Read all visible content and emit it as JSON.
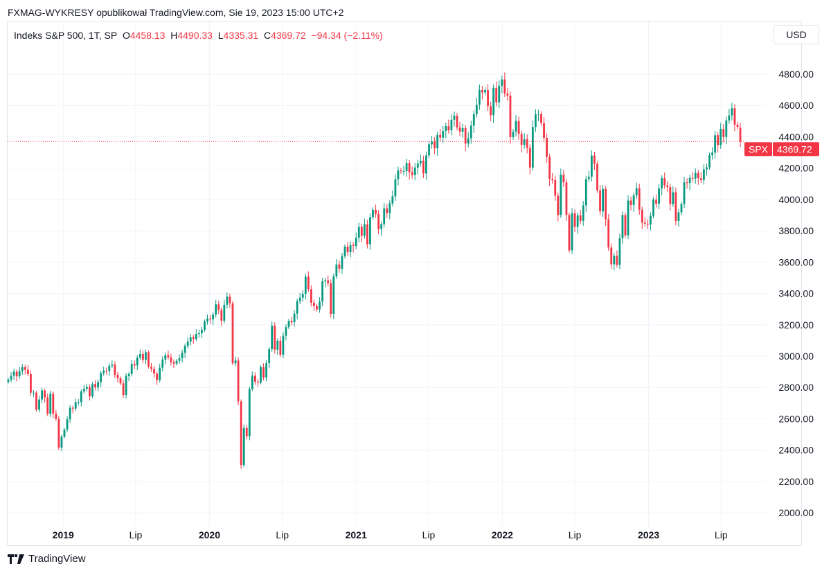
{
  "header": {
    "published": "FXMAG-WYKRESY opublikował TradingView.com, Sie 19, 2023 15:00 UTC+2"
  },
  "legend": {
    "symbol": "Indeks S&P 500, 1T, SP",
    "o_label": "O",
    "o": "4458.13",
    "h_label": "H",
    "h": "4490.33",
    "l_label": "L",
    "l": "4335.31",
    "c_label": "C",
    "c": "4369.72",
    "change": "−94.34 (−2.11%)"
  },
  "currency_button": "USD",
  "price_tag": {
    "symbol": "SPX",
    "value": "4369.72"
  },
  "brand": "TradingView",
  "colors": {
    "up": "#089981",
    "down": "#f23645",
    "grid": "#f0f3fa",
    "axis_text": "#131722"
  },
  "chart_data": {
    "type": "candlestick",
    "interval": "1 week",
    "x_start": "2018-08-17",
    "ylim": [
      1950,
      4900
    ],
    "y_scale": "linear",
    "grid": true,
    "y_ticks": [
      "2000.00",
      "2200.00",
      "2400.00",
      "2600.00",
      "2800.00",
      "3000.00",
      "3200.00",
      "3400.00",
      "3600.00",
      "3800.00",
      "4000.00",
      "4200.00",
      "4400.00",
      "4600.00",
      "4800.00"
    ],
    "x_ticks": [
      {
        "label": "2019",
        "date": "2019-01-01",
        "bold": true
      },
      {
        "label": "Lip",
        "date": "2019-07-01"
      },
      {
        "label": "2020",
        "date": "2020-01-01",
        "bold": true
      },
      {
        "label": "Lip",
        "date": "2020-07-01"
      },
      {
        "label": "2021",
        "date": "2021-01-01",
        "bold": true
      },
      {
        "label": "Lip",
        "date": "2021-07-01"
      },
      {
        "label": "2022",
        "date": "2022-01-01",
        "bold": true
      },
      {
        "label": "Lip",
        "date": "2022-07-01"
      },
      {
        "label": "2023",
        "date": "2023-01-01",
        "bold": true
      },
      {
        "label": "Lip",
        "date": "2023-07-01"
      }
    ],
    "last_price": 4369.72,
    "last_candle": {
      "open": 4458.13,
      "high": 4490.33,
      "low": 4335.31,
      "close": 4369.72
    },
    "weekly_close": [
      2850,
      2875,
      2901,
      2871,
      2904,
      2929,
      2913,
      2885,
      2767,
      2767,
      2658,
      2723,
      2781,
      2736,
      2632,
      2760,
      2633,
      2599,
      2416,
      2485,
      2531,
      2596,
      2670,
      2665,
      2706,
      2707,
      2775,
      2792,
      2803,
      2743,
      2822,
      2800,
      2834,
      2892,
      2907,
      2905,
      2939,
      2945,
      2881,
      2859,
      2826,
      2752,
      2873,
      2886,
      2950,
      2941,
      2990,
      3013,
      2976,
      3025,
      2932,
      2918,
      2888,
      2847,
      2926,
      2978,
      3007,
      2992,
      2961,
      2952,
      2970,
      2986,
      3022,
      3066,
      3093,
      3120,
      3110,
      3141,
      3146,
      3168,
      3221,
      3240,
      3235,
      3265,
      3330,
      3295,
      3226,
      3328,
      3380,
      3338,
      2954,
      2972,
      2711,
      2305,
      2541,
      2489,
      2790,
      2875,
      2837,
      2831,
      2930,
      2864,
      2955,
      3044,
      3194,
      3041,
      3098,
      3009,
      3130,
      3185,
      3225,
      3216,
      3271,
      3351,
      3373,
      3397,
      3508,
      3427,
      3341,
      3319,
      3298,
      3348,
      3477,
      3484,
      3465,
      3270,
      3509,
      3585,
      3558,
      3638,
      3699,
      3663,
      3709,
      3703,
      3756,
      3825,
      3768,
      3841,
      3714,
      3887,
      3934,
      3907,
      3811,
      3842,
      3943,
      3913,
      3975,
      4020,
      4129,
      4185,
      4180,
      4181,
      4233,
      4174,
      4156,
      4204,
      4230,
      4247,
      4166,
      4281,
      4352,
      4370,
      4327,
      4412,
      4395,
      4437,
      4468,
      4442,
      4509,
      4535,
      4459,
      4433,
      4455,
      4357,
      4391,
      4471,
      4545,
      4605,
      4698,
      4683,
      4698,
      4595,
      4538,
      4712,
      4620,
      4726,
      4766,
      4677,
      4663,
      4398,
      4432,
      4501,
      4419,
      4349,
      4385,
      4329,
      4204,
      4463,
      4543,
      4546,
      4488,
      4393,
      4272,
      4132,
      4123,
      4024,
      3901,
      4158,
      4109,
      3901,
      3675,
      3912,
      3825,
      3899,
      3863,
      3962,
      4130,
      4145,
      4280,
      4228,
      4058,
      3924,
      4067,
      3873,
      3693,
      3586,
      3640,
      3583,
      3752,
      3901,
      3771,
      3993,
      3965,
      4026,
      4072,
      3934,
      3852,
      3845,
      3840,
      3895,
      3999,
      3973,
      4071,
      4136,
      4090,
      4079,
      3970,
      4046,
      3862,
      3917,
      3971,
      4109,
      4105,
      4138,
      4133,
      4169,
      4136,
      4124,
      4192,
      4205,
      4282,
      4299,
      4410,
      4348,
      4450,
      4399,
      4505,
      4536,
      4582,
      4478,
      4464,
      4369.72
    ]
  }
}
